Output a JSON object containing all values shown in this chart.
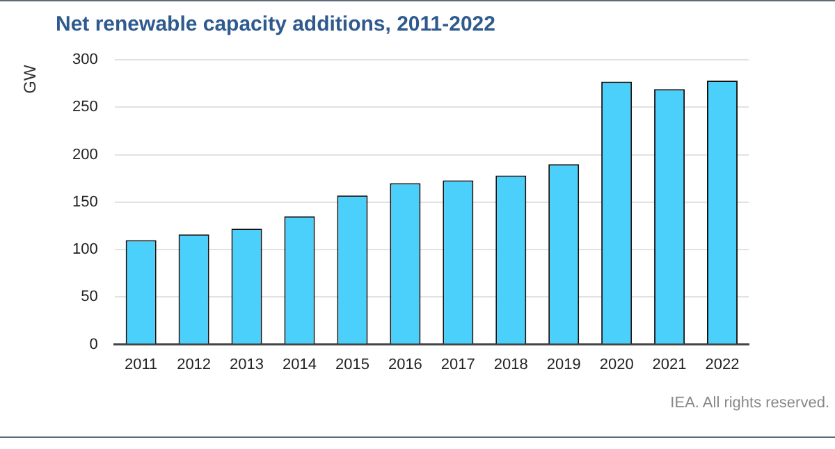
{
  "chart_data": {
    "type": "bar",
    "title": "Net renewable capacity additions, 2011-2022",
    "ylabel": "GW",
    "categories": [
      "2011",
      "2012",
      "2013",
      "2014",
      "2015",
      "2016",
      "2017",
      "2018",
      "2019",
      "2020",
      "2021",
      "2022"
    ],
    "values": [
      110,
      116,
      122,
      135,
      157,
      170,
      173,
      178,
      190,
      277,
      269,
      278
    ],
    "color": "#4bd0fb",
    "ylim": [
      0,
      300
    ],
    "yticks": [
      0,
      50,
      100,
      150,
      200,
      250,
      300
    ],
    "grid": "y",
    "legend": false,
    "annotations": [
      "IEA. All rights reserved."
    ]
  }
}
